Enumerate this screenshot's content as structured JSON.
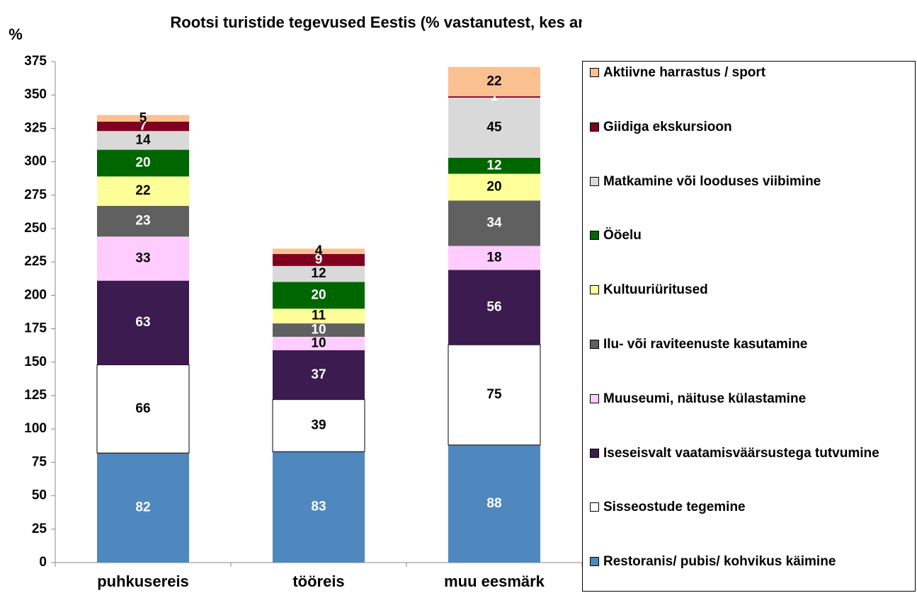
{
  "chart_data": {
    "type": "stacked_bar",
    "title": "Rootsi turistide tegevused Eestis (% vastanutest, kes antud tegevuses osales)",
    "y_label": "%",
    "categories": [
      "puhkusereis",
      "tööreis",
      "muu eesmärk"
    ],
    "series": [
      {
        "name": "Restoranis/ pubis/ kohvikus käimine",
        "color": "#4f87bf",
        "values": [
          82,
          83,
          88
        ]
      },
      {
        "name": "Sisseostude tegemine",
        "color": "#ffffff",
        "values": [
          66,
          39,
          75
        ]
      },
      {
        "name": "Iseseisvalt vaatamisväärsustega tutvumine",
        "color": "#3c1b50",
        "values": [
          63,
          37,
          56
        ]
      },
      {
        "name": "Muuseumi, näituse külastamine",
        "color": "#ffccff",
        "values": [
          33,
          10,
          18
        ]
      },
      {
        "name": "Ilu- või raviteenuste kasutamine",
        "color": "#606060",
        "values": [
          23,
          10,
          34
        ]
      },
      {
        "name": "Kultuuriüritused",
        "color": "#ffff99",
        "values": [
          22,
          11,
          20
        ]
      },
      {
        "name": "Ööelu",
        "color": "#006600",
        "values": [
          20,
          20,
          12
        ]
      },
      {
        "name": "Matkamine või looduses viibimine",
        "color": "#d9d9d9",
        "values": [
          14,
          12,
          45
        ]
      },
      {
        "name": "Giidiga ekskursioon",
        "color": "#800020",
        "values": [
          7,
          9,
          1
        ]
      },
      {
        "name": "Aktiivne harrastus / sport",
        "color": "#fac090",
        "values": [
          5,
          4,
          22
        ]
      }
    ],
    "ylim": [
      0,
      375
    ],
    "yticks": [
      0,
      25,
      50,
      75,
      100,
      125,
      150,
      175,
      200,
      225,
      250,
      275,
      300,
      325,
      350,
      375
    ],
    "grid": false,
    "legend": "right"
  }
}
